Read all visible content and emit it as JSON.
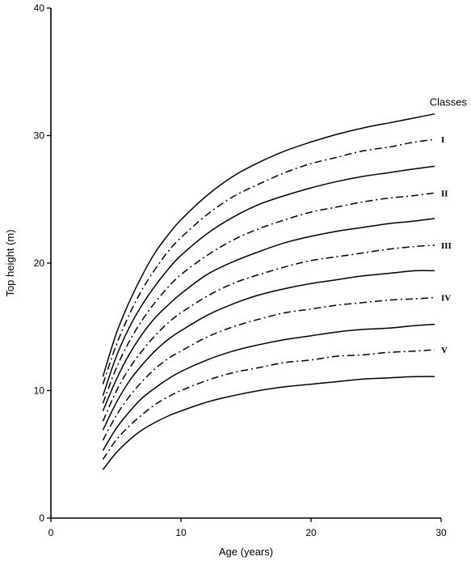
{
  "chart_data": {
    "type": "line",
    "xlabel": "Age (years)",
    "ylabel": "Top height (m)",
    "xlim": [
      0,
      30
    ],
    "ylim": [
      0,
      40
    ],
    "x_ticks": [
      0,
      10,
      20,
      30
    ],
    "y_ticks": [
      0,
      10,
      20,
      30,
      40
    ],
    "grid": false,
    "legend_title": "Classes",
    "x": [
      4,
      5,
      6,
      7,
      8,
      9,
      10,
      12,
      14,
      16,
      18,
      20,
      22,
      24,
      26,
      28,
      29.5
    ],
    "series": [
      {
        "style": "solid",
        "values": [
          11.1,
          14.4,
          16.9,
          19.0,
          20.8,
          22.2,
          23.4,
          25.3,
          26.8,
          27.9,
          28.8,
          29.5,
          30.1,
          30.6,
          31.0,
          31.4,
          31.7
        ]
      },
      {
        "style": "dashdot",
        "name": "I",
        "values": [
          10.5,
          13.5,
          15.9,
          17.9,
          19.5,
          20.9,
          22.0,
          23.8,
          25.2,
          26.2,
          27.1,
          27.8,
          28.3,
          28.8,
          29.1,
          29.5,
          29.7
        ]
      },
      {
        "style": "solid",
        "values": [
          9.6,
          12.6,
          14.9,
          16.7,
          18.2,
          19.5,
          20.6,
          22.3,
          23.6,
          24.6,
          25.3,
          25.9,
          26.4,
          26.8,
          27.1,
          27.4,
          27.6
        ]
      },
      {
        "style": "dashdot",
        "name": "II",
        "values": [
          9.0,
          11.7,
          13.8,
          15.5,
          16.9,
          18.1,
          19.1,
          20.6,
          21.8,
          22.7,
          23.4,
          24.0,
          24.4,
          24.8,
          25.1,
          25.3,
          25.5
        ]
      },
      {
        "style": "solid",
        "values": [
          8.4,
          10.8,
          12.8,
          14.4,
          15.7,
          16.7,
          17.6,
          19.1,
          20.1,
          20.9,
          21.6,
          22.1,
          22.5,
          22.8,
          23.1,
          23.3,
          23.5
        ]
      },
      {
        "style": "dashdot",
        "name": "III",
        "values": [
          7.6,
          9.9,
          11.7,
          13.1,
          14.3,
          15.3,
          16.1,
          17.4,
          18.4,
          19.1,
          19.7,
          20.2,
          20.5,
          20.8,
          21.1,
          21.3,
          21.4
        ]
      },
      {
        "style": "solid",
        "values": [
          6.9,
          9.0,
          10.7,
          12.0,
          13.1,
          14.0,
          14.7,
          15.9,
          16.8,
          17.5,
          18.0,
          18.4,
          18.7,
          19.0,
          19.2,
          19.4,
          19.4
        ]
      },
      {
        "style": "dashdot",
        "name": "IV",
        "values": [
          6.1,
          8.0,
          9.5,
          10.7,
          11.7,
          12.5,
          13.1,
          14.2,
          15.0,
          15.6,
          16.1,
          16.4,
          16.7,
          16.9,
          17.1,
          17.2,
          17.3
        ]
      },
      {
        "style": "solid",
        "values": [
          5.3,
          7.0,
          8.3,
          9.4,
          10.2,
          10.9,
          11.5,
          12.4,
          13.1,
          13.6,
          14.0,
          14.3,
          14.6,
          14.8,
          14.9,
          15.1,
          15.2
        ]
      },
      {
        "style": "dashdot",
        "name": "V",
        "values": [
          4.6,
          6.1,
          7.2,
          8.1,
          8.9,
          9.5,
          10.0,
          10.8,
          11.4,
          11.8,
          12.2,
          12.4,
          12.7,
          12.8,
          13.0,
          13.1,
          13.2
        ]
      },
      {
        "style": "solid",
        "values": [
          3.8,
          5.1,
          6.1,
          6.9,
          7.5,
          8.0,
          8.4,
          9.1,
          9.6,
          10.0,
          10.3,
          10.5,
          10.7,
          10.9,
          11.0,
          11.1,
          11.1
        ]
      }
    ]
  }
}
